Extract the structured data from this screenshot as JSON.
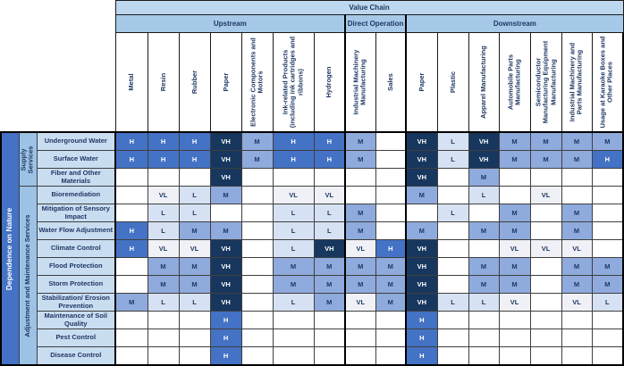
{
  "chart_data": {
    "type": "heatmap",
    "title": "Value Chain",
    "row_axis_label": "Dependence on Nature",
    "row_groups": [
      {
        "label": "Supply Services",
        "rows": 3
      },
      {
        "label": "Adjustment and Maintenance Services",
        "rows": 10
      }
    ],
    "col_groups": [
      {
        "label": "Upstream",
        "span": 7
      },
      {
        "label": "Direct Operation",
        "span": 2
      },
      {
        "label": "Downstream",
        "span": 7
      }
    ],
    "columns": [
      "Metal",
      "Resin",
      "Rubber",
      "Paper",
      "Electronic Components and Motors",
      "Ink-related Products (including ink cartridges and ribbons)",
      "Hydrogen",
      "Industrial Machinery Manufacturing",
      "Sales",
      "Paper",
      "Plastic",
      "Apparel Manufacturing",
      "Automobile Parts Manufacturing",
      "Semiconductor Manufacturing Equipment Manufacturing",
      "Industrial Machinery and Parts Manufacturing",
      "Usage at Karaoke Boxes and Other Places"
    ],
    "rows": [
      {
        "label": "Underground Water",
        "group": "Supply Services",
        "values": [
          "H",
          "H",
          "H",
          "VH",
          "M",
          "H",
          "H",
          "M",
          "",
          "VH",
          "L",
          "VH",
          "M",
          "M",
          "M",
          "M"
        ]
      },
      {
        "label": "Surface Water",
        "group": "Supply Services",
        "values": [
          "H",
          "H",
          "H",
          "VH",
          "M",
          "H",
          "H",
          "M",
          "",
          "VH",
          "L",
          "VH",
          "M",
          "M",
          "M",
          "H"
        ]
      },
      {
        "label": "Fiber and Other Materials",
        "group": "Supply Services",
        "values": [
          "",
          "",
          "",
          "VH",
          "",
          "",
          "",
          "",
          "",
          "VH",
          "",
          "M",
          "",
          "",
          "",
          ""
        ]
      },
      {
        "label": "Bioremediation",
        "group": "Adjustment and Maintenance Services",
        "values": [
          "",
          "VL",
          "L",
          "M",
          "",
          "VL",
          "VL",
          "",
          "",
          "M",
          "",
          "L",
          "",
          "VL",
          "",
          ""
        ]
      },
      {
        "label": "Mitigation of Sensory Impact",
        "group": "Adjustment and Maintenance Services",
        "values": [
          "",
          "L",
          "L",
          "",
          "",
          "L",
          "L",
          "M",
          "",
          "",
          "L",
          "",
          "M",
          "",
          "M",
          ""
        ]
      },
      {
        "label": "Water Flow Adjustment",
        "group": "Adjustment and Maintenance Services",
        "values": [
          "H",
          "L",
          "M",
          "M",
          "",
          "L",
          "L",
          "M",
          "",
          "M",
          "",
          "M",
          "M",
          "",
          "M",
          ""
        ]
      },
      {
        "label": "Climate Control",
        "group": "Adjustment and Maintenance Services",
        "values": [
          "H",
          "VL",
          "VL",
          "VH",
          "",
          "L",
          "VH",
          "VL",
          "H",
          "VH",
          "",
          "",
          "VL",
          "VL",
          "VL",
          ""
        ]
      },
      {
        "label": "Flood Protection",
        "group": "Adjustment and Maintenance Services",
        "values": [
          "",
          "M",
          "M",
          "VH",
          "",
          "M",
          "M",
          "M",
          "M",
          "VH",
          "",
          "M",
          "M",
          "",
          "M",
          "M"
        ]
      },
      {
        "label": "Storm Protection",
        "group": "Adjustment and Maintenance Services",
        "values": [
          "",
          "M",
          "M",
          "VH",
          "",
          "M",
          "M",
          "M",
          "M",
          "VH",
          "",
          "M",
          "M",
          "",
          "M",
          "M"
        ]
      },
      {
        "label": "Stabilization/ Erosion Prevention",
        "group": "Adjustment and Maintenance Services",
        "values": [
          "M",
          "L",
          "L",
          "VH",
          "",
          "L",
          "M",
          "VL",
          "M",
          "VH",
          "L",
          "L",
          "VL",
          "",
          "VL",
          "L"
        ]
      },
      {
        "label": "Maintenance of Soil Quality",
        "group": "Adjustment and Maintenance Services",
        "values": [
          "",
          "",
          "",
          "H",
          "",
          "",
          "",
          "",
          "",
          "H",
          "",
          "",
          "",
          "",
          "",
          ""
        ]
      },
      {
        "label": "Pest Control",
        "group": "Adjustment and Maintenance Services",
        "values": [
          "",
          "",
          "",
          "H",
          "",
          "",
          "",
          "",
          "",
          "H",
          "",
          "",
          "",
          "",
          "",
          ""
        ]
      },
      {
        "label": "Disease Control",
        "group": "Adjustment and Maintenance Services",
        "values": [
          "",
          "",
          "",
          "H",
          "",
          "",
          "",
          "",
          "",
          "H",
          "",
          "",
          "",
          "",
          "",
          ""
        ]
      }
    ],
    "colors": {
      "VH": "#17375E",
      "H": "#4472C4",
      "M": "#8FAADC",
      "L": "#D6E2F3",
      "VL": "#EFF1F6",
      "blank": "#FFFFFF"
    }
  }
}
